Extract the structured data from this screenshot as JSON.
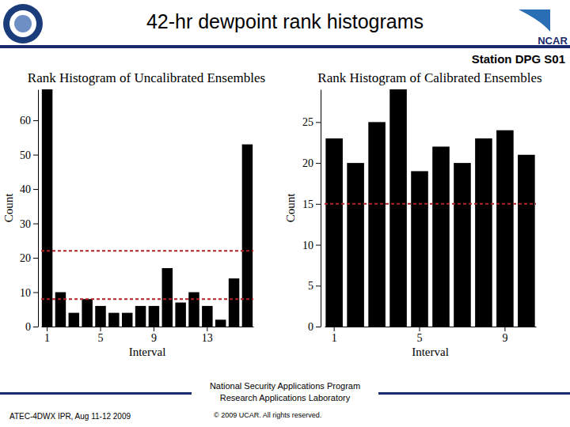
{
  "slide": {
    "title": "42-hr dewpoint rank histograms",
    "station": "Station DPG S01",
    "logo_text": "NCAR",
    "footer_lines": [
      "National Security Applications Program",
      "Research Applications Laboratory"
    ],
    "event": "ATEC-4DWX IPR, Aug 11-12 2009",
    "copyright": "© 2009 UCAR.  All rights reserved."
  },
  "chart_data": [
    {
      "type": "bar",
      "title": "Rank Histogram of Uncalibrated Ensembles",
      "x_label": "Interval",
      "y_label": "Count",
      "categories": [
        "1",
        null,
        null,
        null,
        "5",
        null,
        null,
        null,
        "9",
        null,
        null,
        null,
        "13",
        null,
        null,
        null
      ],
      "values": [
        69,
        10,
        4,
        8,
        6,
        4,
        4,
        6,
        6,
        17,
        7,
        10,
        6,
        2,
        14,
        53
      ],
      "color": "#000000",
      "ylim": [
        0,
        69
      ],
      "yticks": [
        0,
        10,
        20,
        30,
        40,
        50,
        60
      ],
      "reference_lines": [
        22,
        8
      ]
    },
    {
      "type": "bar",
      "title": "Rank Histogram of Calibrated Ensembles",
      "x_label": "Interval",
      "y_label": "Count",
      "categories": [
        "1",
        null,
        null,
        null,
        "5",
        null,
        null,
        null,
        "9",
        null
      ],
      "values": [
        23,
        20,
        25,
        29,
        19,
        22,
        20,
        23,
        24,
        21
      ],
      "color": "#000000",
      "ylim": [
        0,
        29
      ],
      "yticks": [
        0,
        5,
        10,
        15,
        20,
        25
      ],
      "reference_lines": [
        15
      ]
    }
  ]
}
